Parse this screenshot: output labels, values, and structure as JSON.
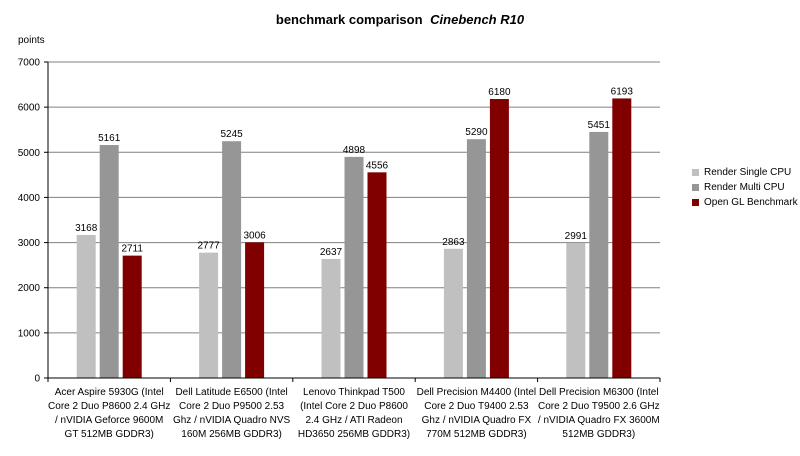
{
  "chart_data": {
    "type": "bar",
    "title": "benchmark comparison",
    "title_emphasis": "Cinebench R10",
    "ylabel": "points",
    "xlabel": "",
    "ylim": [
      0,
      7000
    ],
    "yticks": [
      0,
      1000,
      2000,
      3000,
      4000,
      5000,
      6000,
      7000
    ],
    "grid": true,
    "legend_position": "right",
    "categories": [
      [
        "Acer Aspire 5930G (Intel",
        "Core 2 Duo P8600 2.4 GHz",
        "/ nVIDIA Geforce 9600M",
        "GT 512MB GDDR3)"
      ],
      [
        "Dell Latitude E6500 (Intel",
        "Core 2 Duo P9500 2.53",
        "Ghz / nVIDIA Quadro NVS",
        "160M 256MB GDDR3)"
      ],
      [
        "Lenovo Thinkpad T500",
        "(Intel Core 2 Duo P8600",
        "2.4 GHz / ATI Radeon",
        "HD3650 256MB GDDR3)"
      ],
      [
        "Dell Precision M4400 (Intel",
        "Core 2 Duo T9400 2.53",
        "Ghz / nVIDIA Quadro FX",
        "770M 512MB GDDR3)"
      ],
      [
        "Dell Precision M6300 (Intel",
        "Core 2 Duo T9500 2.6 GHz",
        "/ nVIDIA Quadro FX 3600M",
        "512MB GDDR3)"
      ]
    ],
    "series": [
      {
        "name": "Render Single CPU",
        "color": "#c0c0c0",
        "values": [
          3168,
          2777,
          2637,
          2863,
          2991
        ]
      },
      {
        "name": "Render Multi CPU",
        "color": "#969696",
        "values": [
          5161,
          5245,
          4898,
          5290,
          5451
        ]
      },
      {
        "name": "Open GL Benchmark",
        "color": "#800000",
        "values": [
          2711,
          3006,
          4556,
          6180,
          6193
        ]
      }
    ]
  }
}
